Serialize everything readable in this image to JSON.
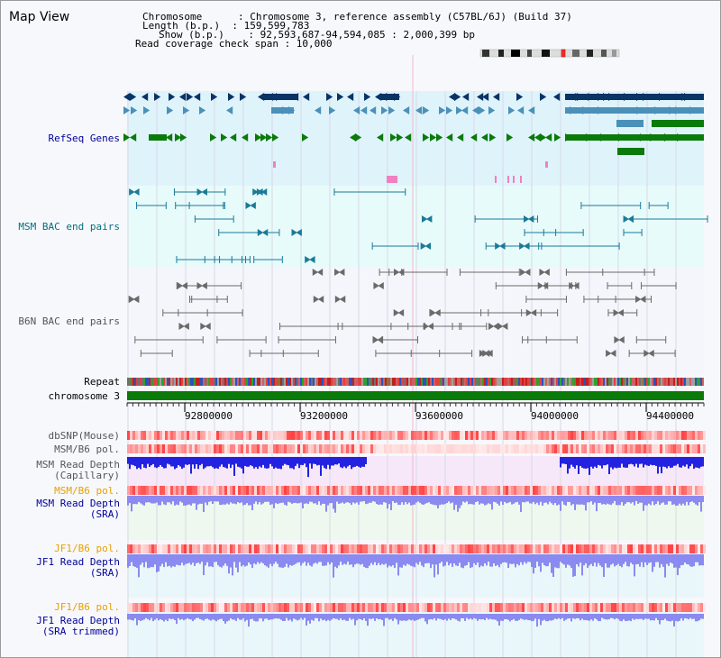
{
  "app_title": "Map View",
  "header": {
    "line1": "Chromosome      : Chromosome 3, reference assembly (C57BL/6J) (Build 37)",
    "line2": "Length (b.p.)  : 159,599,783",
    "line3": "Show (b.p.)    : 92,593,687-94,594,085 : 2,000,399 bp",
    "line4": "Read coverage check span : 10,000"
  },
  "labels": {
    "refseq": "RefSeq Genes",
    "msm_bac": "MSM BAC end pairs",
    "b6n_bac": "B6N BAC end pairs",
    "repeat": "Repeat",
    "chromosome": "chromosome 3",
    "dbsnp": "dbSNP(Mouse)",
    "msm_pol1": "MSM/B6 pol.",
    "msm_depth_cap_1": "MSM Read Depth",
    "msm_depth_cap_2": "(Capillary)",
    "msm_pol2": "MSM/B6 pol.",
    "msm_depth_sra_1": "MSM Read Depth",
    "msm_depth_sra_2": "(SRA)",
    "jf1_pol1": "JF1/B6 pol.",
    "jf1_depth_sra_1": "JF1 Read Depth",
    "jf1_depth_sra_2": "(SRA)",
    "jf1_pol2": "JF1/B6 pol.",
    "jf1_depth_trim_1": "JF1 Read Depth",
    "jf1_depth_trim_2": "(SRA trimmed)"
  },
  "axis_ticks": [
    "92800000",
    "93200000",
    "93600000",
    "94000000",
    "94400000"
  ],
  "colors": {
    "label_navy": "#000099",
    "label_teal": "#006f7f",
    "label_gray": "#555555",
    "label_orange": "#e8a000",
    "refseq_bg": "#dff3fb",
    "msm_bg": "#e7fbfb",
    "gene_navy": "#0a3366",
    "gene_blue": "#4a90b8",
    "gene_green": "#0a7a0a",
    "chrom_green": "#0a7a0a",
    "depth_blue": "#2222e0",
    "depth_light": "#8a8af0"
  }
}
